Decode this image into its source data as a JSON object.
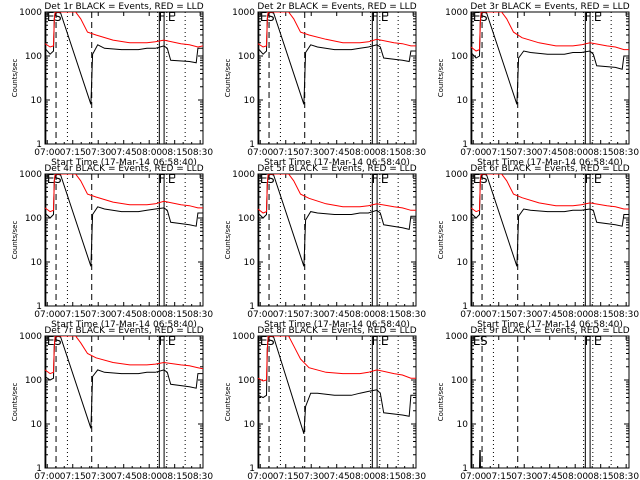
{
  "figure": {
    "start_time_label": "Start Time (17-Mar-14 06:58:40)",
    "ylabel": "Counts/sec",
    "series_colors": {
      "events": "#000000",
      "lld": "#ff0000"
    }
  },
  "shared_axes": {
    "x_ticks": [
      "07:00",
      "07:15",
      "07:30",
      "07:45",
      "08:00",
      "08:15",
      "08:30"
    ],
    "x_tick_minutes": [
      1.33,
      16.33,
      31.33,
      46.33,
      61.33,
      76.33,
      91.33
    ],
    "x_range_min": [
      0,
      93
    ],
    "y_scale": "log",
    "y_range": [
      1,
      1000
    ],
    "y_ticks": [
      "1",
      "10",
      "100",
      "1000"
    ],
    "flag_letters": {
      "E": "E",
      "S": "S",
      "F": "F"
    },
    "markers_min": {
      "E_left": 0.5,
      "S_dashed": 6.5,
      "dotted_1": 13.2,
      "dashed_2": 27.5,
      "F_dotted": 66.3,
      "F_solid_a": 67.3,
      "F_solid_b": 70.1,
      "E_right_dotted": 71.7,
      "dotted_3": 82.5
    }
  },
  "chart_data": [
    {
      "type": "line",
      "title": "Det 1r BLACK = Events, RED = LLD",
      "xlabel": "Start Time (17-Mar-14 06:58:40)",
      "ylabel": "Counts/sec",
      "series": [
        {
          "name": "Events",
          "color": "#000000",
          "x": [
            0,
            3,
            5,
            5.5,
            6,
            9,
            27,
            28,
            31,
            35,
            45,
            55,
            60,
            65,
            70,
            72,
            74,
            85,
            89,
            90,
            93
          ],
          "y": [
            150,
            110,
            130,
            700,
            1000,
            1000,
            8,
            110,
            180,
            150,
            140,
            140,
            150,
            150,
            170,
            150,
            80,
            75,
            70,
            150,
            150
          ]
        },
        {
          "name": "LLD",
          "color": "#ff0000",
          "x": [
            0,
            3,
            5,
            5.5,
            6,
            9,
            18,
            21,
            25,
            30,
            40,
            50,
            60,
            65,
            70,
            80,
            85,
            90,
            93
          ],
          "y": [
            190,
            160,
            170,
            700,
            1000,
            1000,
            1000,
            700,
            350,
            300,
            230,
            200,
            200,
            210,
            230,
            190,
            180,
            160,
            170
          ]
        }
      ]
    },
    {
      "type": "line",
      "title": "Det 2r BLACK = Events, RED = LLD",
      "xlabel": "Start Time (17-Mar-14 06:58:40)",
      "ylabel": "Counts/sec",
      "series": [
        {
          "name": "Events",
          "color": "#000000",
          "x": [
            0,
            3,
            5,
            5.5,
            6,
            9,
            27,
            28,
            31,
            35,
            45,
            55,
            60,
            65,
            70,
            72,
            74,
            85,
            89,
            90,
            93
          ],
          "y": [
            150,
            110,
            130,
            700,
            1000,
            1000,
            8,
            120,
            180,
            160,
            140,
            140,
            150,
            160,
            180,
            160,
            90,
            80,
            75,
            130,
            130
          ]
        },
        {
          "name": "LLD",
          "color": "#ff0000",
          "x": [
            0,
            3,
            5,
            5.5,
            6,
            9,
            18,
            21,
            25,
            30,
            40,
            50,
            60,
            65,
            70,
            80,
            85,
            90,
            93
          ],
          "y": [
            190,
            160,
            170,
            700,
            1000,
            1000,
            1000,
            700,
            350,
            300,
            240,
            200,
            200,
            210,
            240,
            200,
            190,
            170,
            170
          ]
        }
      ]
    },
    {
      "type": "line",
      "title": "Det 3r BLACK = Events, RED = LLD",
      "xlabel": "Start Time (17-Mar-14 06:58:40)",
      "ylabel": "Counts/sec",
      "series": [
        {
          "name": "Events",
          "color": "#000000",
          "x": [
            0,
            3,
            5,
            5.5,
            6,
            9,
            27,
            28,
            31,
            35,
            45,
            55,
            60,
            65,
            70,
            72,
            74,
            85,
            89,
            90,
            93
          ],
          "y": [
            120,
            90,
            100,
            600,
            1000,
            1000,
            8,
            90,
            130,
            120,
            110,
            110,
            120,
            120,
            130,
            110,
            60,
            55,
            50,
            100,
            100
          ]
        },
        {
          "name": "LLD",
          "color": "#ff0000",
          "x": [
            0,
            3,
            5,
            5.5,
            6,
            9,
            18,
            21,
            25,
            30,
            40,
            50,
            60,
            65,
            70,
            80,
            85,
            90,
            93
          ],
          "y": [
            160,
            130,
            140,
            600,
            1000,
            1000,
            1000,
            700,
            350,
            260,
            200,
            170,
            170,
            180,
            200,
            170,
            160,
            140,
            140
          ]
        }
      ]
    },
    {
      "type": "line",
      "title": "Det 4r BLACK = Events, RED = LLD",
      "xlabel": "Start Time (17-Mar-14 06:58:40)",
      "ylabel": "Counts/sec",
      "series": [
        {
          "name": "Events",
          "color": "#000000",
          "x": [
            0,
            3,
            5,
            5.5,
            6,
            9,
            27,
            28,
            31,
            35,
            45,
            55,
            60,
            65,
            70,
            72,
            74,
            85,
            89,
            90,
            93
          ],
          "y": [
            130,
            100,
            120,
            700,
            1000,
            1000,
            8,
            120,
            180,
            160,
            140,
            140,
            150,
            160,
            170,
            150,
            80,
            70,
            65,
            130,
            130
          ]
        },
        {
          "name": "LLD",
          "color": "#ff0000",
          "x": [
            0,
            3,
            5,
            5.5,
            6,
            9,
            18,
            21,
            25,
            30,
            40,
            50,
            60,
            65,
            70,
            80,
            85,
            90,
            93
          ],
          "y": [
            170,
            140,
            150,
            700,
            1000,
            1000,
            1000,
            700,
            350,
            300,
            230,
            200,
            200,
            210,
            240,
            200,
            190,
            170,
            170
          ]
        }
      ]
    },
    {
      "type": "line",
      "title": "Det 5r BLACK = Events, RED = LLD",
      "xlabel": "Start Time (17-Mar-14 06:58:40)",
      "ylabel": "Counts/sec",
      "series": [
        {
          "name": "Events",
          "color": "#000000",
          "x": [
            0,
            3,
            5,
            5.5,
            6,
            9,
            27,
            28,
            31,
            35,
            45,
            55,
            60,
            65,
            70,
            72,
            74,
            85,
            89,
            90,
            93
          ],
          "y": [
            130,
            100,
            120,
            600,
            1000,
            1000,
            8,
            90,
            140,
            130,
            120,
            120,
            130,
            130,
            150,
            130,
            70,
            60,
            55,
            110,
            110
          ]
        },
        {
          "name": "LLD",
          "color": "#ff0000",
          "x": [
            0,
            3,
            5,
            5.5,
            6,
            9,
            18,
            21,
            25,
            30,
            40,
            50,
            60,
            65,
            70,
            80,
            85,
            90,
            93
          ],
          "y": [
            160,
            130,
            140,
            600,
            1000,
            1000,
            1000,
            700,
            350,
            280,
            210,
            180,
            180,
            190,
            210,
            180,
            170,
            150,
            150
          ]
        }
      ]
    },
    {
      "type": "line",
      "title": "Det 6r BLACK = Events, RED = LLD",
      "xlabel": "Start Time (17-Mar-14 06:58:40)",
      "ylabel": "Counts/sec",
      "series": [
        {
          "name": "Events",
          "color": "#000000",
          "x": [
            0,
            3,
            5,
            5.5,
            6,
            9,
            27,
            28,
            31,
            35,
            45,
            55,
            60,
            65,
            70,
            72,
            74,
            85,
            89,
            90,
            93
          ],
          "y": [
            130,
            100,
            120,
            700,
            1000,
            1000,
            8,
            110,
            160,
            150,
            140,
            140,
            150,
            150,
            160,
            150,
            80,
            70,
            65,
            120,
            120
          ]
        },
        {
          "name": "LLD",
          "color": "#ff0000",
          "x": [
            0,
            3,
            5,
            5.5,
            6,
            9,
            18,
            21,
            25,
            30,
            40,
            50,
            60,
            65,
            70,
            80,
            85,
            90,
            93
          ],
          "y": [
            170,
            140,
            150,
            700,
            1000,
            1000,
            1000,
            700,
            350,
            290,
            220,
            190,
            190,
            200,
            220,
            190,
            180,
            160,
            160
          ]
        }
      ]
    },
    {
      "type": "line",
      "title": "Det 7r BLACK = Events, RED = LLD",
      "xlabel": "Start Time (17-Mar-14 06:58:40)",
      "ylabel": "Counts/sec",
      "series": [
        {
          "name": "Events",
          "color": "#000000",
          "x": [
            0,
            3,
            5,
            5.5,
            6,
            9,
            27,
            28,
            31,
            35,
            45,
            55,
            60,
            65,
            70,
            72,
            74,
            85,
            89,
            90,
            93
          ],
          "y": [
            120,
            100,
            110,
            600,
            1000,
            1000,
            8,
            120,
            170,
            150,
            140,
            140,
            150,
            150,
            170,
            150,
            80,
            70,
            65,
            140,
            140
          ]
        },
        {
          "name": "LLD",
          "color": "#ff0000",
          "x": [
            0,
            3,
            5,
            5.5,
            6,
            9,
            18,
            21,
            25,
            30,
            40,
            50,
            60,
            65,
            70,
            80,
            85,
            90,
            93
          ],
          "y": [
            170,
            140,
            150,
            600,
            1000,
            1000,
            1000,
            700,
            400,
            320,
            250,
            220,
            220,
            230,
            250,
            220,
            210,
            190,
            180
          ]
        }
      ]
    },
    {
      "type": "line",
      "title": "Det 8r BLACK = Events, RED = LLD",
      "xlabel": "Start Time (17-Mar-14 06:58:40)",
      "ylabel": "Counts/sec",
      "series": [
        {
          "name": "Events",
          "color": "#000000",
          "x": [
            0,
            3,
            5,
            5.5,
            6,
            9,
            27,
            28,
            31,
            35,
            45,
            55,
            60,
            65,
            70,
            72,
            74,
            85,
            89,
            90,
            93
          ],
          "y": [
            45,
            40,
            45,
            500,
            1000,
            1000,
            6,
            25,
            50,
            50,
            45,
            45,
            50,
            55,
            60,
            50,
            18,
            16,
            15,
            45,
            45
          ]
        },
        {
          "name": "LLD",
          "color": "#ff0000",
          "x": [
            0,
            3,
            5,
            5.5,
            6,
            9,
            18,
            21,
            25,
            30,
            40,
            50,
            60,
            65,
            70,
            80,
            85,
            90,
            93
          ],
          "y": [
            110,
            95,
            100,
            500,
            1000,
            1000,
            1000,
            600,
            300,
            190,
            150,
            140,
            140,
            150,
            170,
            140,
            130,
            110,
            110
          ]
        }
      ]
    },
    {
      "type": "line",
      "title": "Det 9r BLACK = Events, RED = LLD",
      "xlabel": "Start Time (17-Mar-14 06:58:40)",
      "ylabel": "Counts/sec",
      "series": [
        {
          "name": "Events",
          "color": "#000000",
          "x": [
            5,
            5.2,
            5.4,
            5.6
          ],
          "y": [
            1,
            2.5,
            2.5,
            1
          ]
        }
      ]
    }
  ]
}
